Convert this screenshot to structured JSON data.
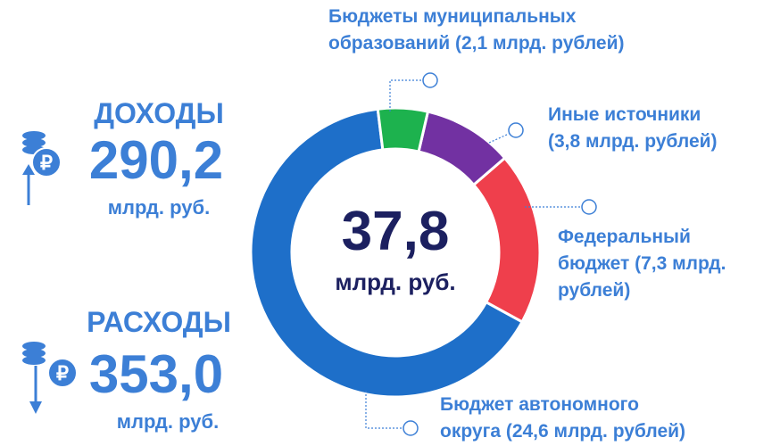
{
  "chart_data": {
    "type": "donut",
    "categories": [
      [
        "Бюджеты муниципальных",
        "образований (2,1 млрд. рублей)"
      ],
      [
        "Иные источники",
        "(3,8 млрд. рублей)"
      ],
      [
        "Федеральный",
        "бюджет (7,3 млрд.",
        "рублей)"
      ],
      [
        "Бюджет автономного",
        "округа (24,6 млрд. рублей)"
      ]
    ],
    "values": [
      2.1,
      3.8,
      7.3,
      24.6
    ],
    "colors": [
      "#1db24e",
      "#7231a2",
      "#ef3f4c",
      "#1e6fc9"
    ],
    "center": {
      "value": "37,8",
      "unit": "млрд. руб."
    }
  },
  "income": {
    "title": "ДОХОДЫ",
    "value": "290,2",
    "unit": "млрд. руб."
  },
  "expenses": {
    "title": "РАСХОДЫ",
    "value": "353,0",
    "unit": "млрд. руб."
  }
}
